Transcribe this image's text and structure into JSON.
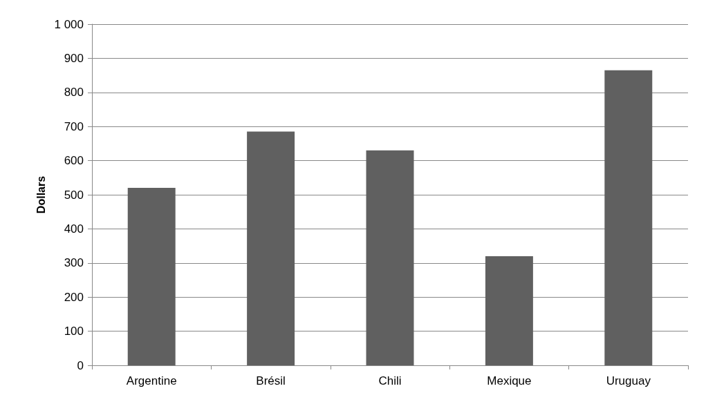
{
  "chart_data": {
    "type": "bar",
    "ylabel": "Dollars",
    "categories": [
      "Argentine",
      "Brésil",
      "Chili",
      "Mexique",
      "Uruguay"
    ],
    "values": [
      520,
      685,
      630,
      320,
      865
    ],
    "color": "#606060",
    "ylim": [
      0,
      1000
    ],
    "yticks": [
      0,
      100,
      200,
      300,
      400,
      500,
      600,
      700,
      800,
      900,
      {
        "value": 1000,
        "label": "1 000"
      }
    ],
    "grid": "y"
  }
}
